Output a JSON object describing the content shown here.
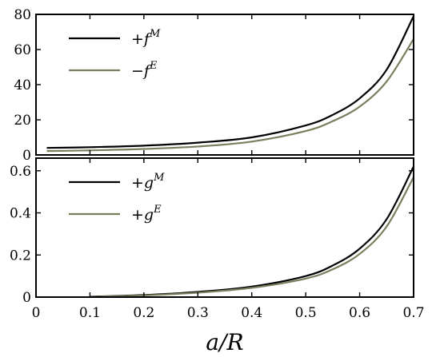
{
  "chart_data": [
    {
      "type": "line",
      "panel": "top",
      "xlabel": "",
      "ylabel": "",
      "xlim": [
        0,
        0.7
      ],
      "ylim": [
        0,
        80
      ],
      "yticks": [
        "0",
        "20",
        "40",
        "60",
        "80"
      ],
      "grid": false,
      "legend_position": "top-left",
      "x": [
        0.02,
        0.1,
        0.2,
        0.3,
        0.4,
        0.5,
        0.55,
        0.6,
        0.65,
        0.7
      ],
      "series": [
        {
          "name": "+f^M",
          "legend_main": "+f",
          "legend_sup": "M",
          "color": "#000000",
          "values": [
            4.0,
            4.4,
            5.3,
            7.0,
            10.0,
            16.8,
            22.8,
            32.2,
            48.5,
            79.0
          ]
        },
        {
          "name": "−f^E",
          "legend_main": "−f",
          "legend_sup": "E",
          "color": "#7d7d5e",
          "values": [
            2.2,
            2.6,
            3.4,
            4.8,
            7.6,
            13.6,
            19.2,
            27.5,
            41.8,
            66.0
          ]
        }
      ]
    },
    {
      "type": "line",
      "panel": "bottom",
      "xlabel": "a/R",
      "ylabel": "",
      "xlim": [
        0,
        0.7
      ],
      "ylim": [
        0,
        0.66
      ],
      "xticks": [
        "0",
        "0.1",
        "0.2",
        "0.3",
        "0.4",
        "0.5",
        "0.6",
        "0.7"
      ],
      "yticks": [
        "0",
        "0.2",
        "0.4",
        "0.6"
      ],
      "grid": false,
      "legend_position": "top-left",
      "x": [
        0.1,
        0.2,
        0.3,
        0.4,
        0.5,
        0.55,
        0.6,
        0.65,
        0.7
      ],
      "series": [
        {
          "name": "+g^M",
          "legend_main": "+g",
          "legend_sup": "M",
          "color": "#000000",
          "values": [
            0.002,
            0.01,
            0.025,
            0.05,
            0.1,
            0.15,
            0.23,
            0.37,
            0.62
          ]
        },
        {
          "name": "+g^E",
          "legend_main": "+g",
          "legend_sup": "E",
          "color": "#7d7d5e",
          "values": [
            0.001,
            0.008,
            0.021,
            0.044,
            0.088,
            0.132,
            0.205,
            0.335,
            0.57
          ]
        }
      ]
    }
  ]
}
